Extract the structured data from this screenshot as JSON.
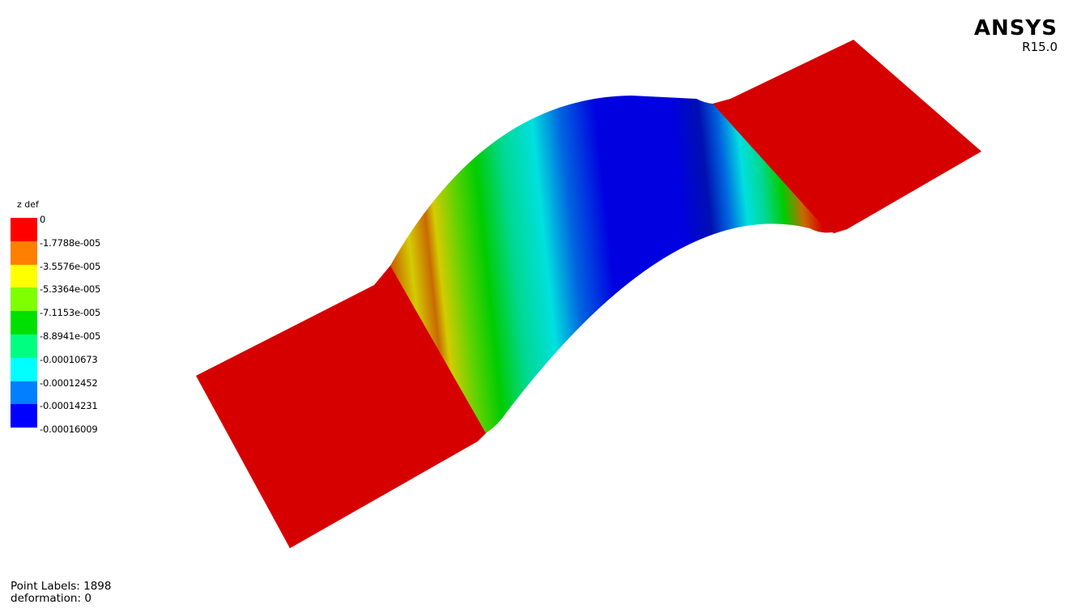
{
  "app": {
    "brand_name": "ANSYS",
    "brand_version": "R15.0"
  },
  "legend": {
    "title": "z def",
    "labels": [
      "0",
      "-1.7788e-005",
      "-3.5576e-005",
      "-5.3364e-005",
      "-7.1153e-005",
      "-8.8941e-005",
      "-0.00010673",
      "-0.00012452",
      "-0.00014231",
      "-0.00016009"
    ],
    "colors": [
      "#ff0000",
      "#ff7f00",
      "#ffff00",
      "#7fff00",
      "#00e000",
      "#00ff80",
      "#00ffff",
      "#0080ff",
      "#0000ff"
    ]
  },
  "status": {
    "point_labels": "Point Labels: 1898",
    "deformation": "deformation: 0"
  },
  "model": {
    "colors": {
      "flat": "#d60000",
      "edge_yellow": "#d4cc00",
      "edge_orange": "#c86a00",
      "green_light": "#5cd200",
      "green": "#00cc00",
      "teal": "#00d890",
      "cyan": "#00e0e0",
      "blue_mid": "#0066e0",
      "blue": "#0000e0",
      "blue_dark": "#0010b0"
    }
  }
}
